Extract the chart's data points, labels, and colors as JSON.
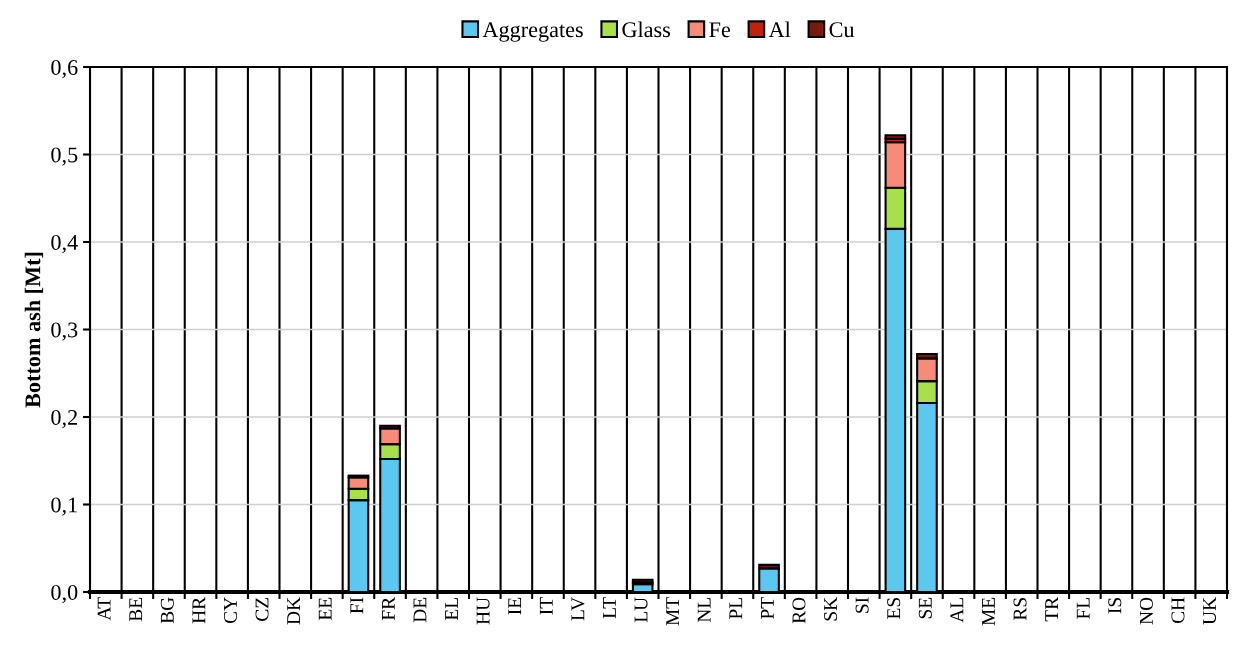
{
  "chart_data": {
    "type": "bar",
    "stacked": true,
    "ylabel": "Bottom ash [Mt]",
    "categories": [
      "AT",
      "BE",
      "BG",
      "HR",
      "CY",
      "CZ",
      "DK",
      "EE",
      "FI",
      "FR",
      "DE",
      "EL",
      "HU",
      "IE",
      "IT",
      "LV",
      "LT",
      "LU",
      "MT",
      "NL",
      "PL",
      "PT",
      "RO",
      "SK",
      "SI",
      "ES",
      "SE",
      "AL",
      "ME",
      "RS",
      "TR",
      "FL",
      "IS",
      "NO",
      "CH",
      "UK"
    ],
    "series": [
      {
        "name": "Aggregates",
        "color": "#5bc8f0",
        "values": [
          0,
          0,
          0,
          0,
          0,
          0,
          0,
          0,
          0.105,
          0.152,
          0,
          0,
          0,
          0,
          0,
          0,
          0,
          0.009,
          0,
          0,
          0,
          0.027,
          0,
          0,
          0,
          0.415,
          0.216,
          0,
          0,
          0,
          0,
          0,
          0,
          0,
          0,
          0
        ]
      },
      {
        "name": "Glass",
        "color": "#a8e04c",
        "values": [
          0,
          0,
          0,
          0,
          0,
          0,
          0,
          0,
          0.013,
          0.017,
          0,
          0,
          0,
          0,
          0,
          0,
          0,
          0,
          0,
          0,
          0,
          0,
          0,
          0,
          0,
          0.047,
          0.025,
          0,
          0,
          0,
          0,
          0,
          0,
          0,
          0,
          0
        ]
      },
      {
        "name": "Fe",
        "color": "#f78b7a",
        "values": [
          0,
          0,
          0,
          0,
          0,
          0,
          0,
          0,
          0.013,
          0.018,
          0,
          0,
          0,
          0,
          0,
          0,
          0,
          0,
          0,
          0,
          0,
          0,
          0,
          0,
          0,
          0.052,
          0.026,
          0,
          0,
          0,
          0,
          0,
          0,
          0,
          0,
          0
        ]
      },
      {
        "name": "Al",
        "color": "#c0220f",
        "values": [
          0,
          0,
          0,
          0,
          0,
          0,
          0,
          0,
          null,
          null,
          0,
          0,
          0,
          0,
          0,
          0,
          0,
          0.002,
          0,
          0,
          0,
          null,
          0,
          0,
          0,
          0.004,
          null,
          0,
          0,
          0,
          0,
          0,
          0,
          0,
          0,
          0
        ]
      },
      {
        "name": "Cu",
        "color": "#7a1a0e",
        "values": [
          0,
          0,
          0,
          0,
          0,
          0,
          0,
          0,
          0.002,
          0.003,
          0,
          0,
          0,
          0,
          0,
          0,
          0,
          0.003,
          0,
          0,
          0,
          0.004,
          0,
          0,
          0,
          0.004,
          0.005,
          0,
          0,
          0,
          0,
          0,
          0,
          0,
          0,
          0
        ]
      }
    ],
    "ylim": [
      0,
      0.6
    ],
    "yticks": [
      {
        "value": 0,
        "label": "0,0"
      },
      {
        "value": 0.1,
        "label": "0,1"
      },
      {
        "value": 0.2,
        "label": "0,2"
      },
      {
        "value": 0.3,
        "label": "0,3"
      },
      {
        "value": 0.4,
        "label": "0,4"
      },
      {
        "value": 0.5,
        "label": "0,5"
      },
      {
        "value": 0.6,
        "label": "0,6"
      }
    ],
    "grid": true,
    "legend": "top"
  }
}
